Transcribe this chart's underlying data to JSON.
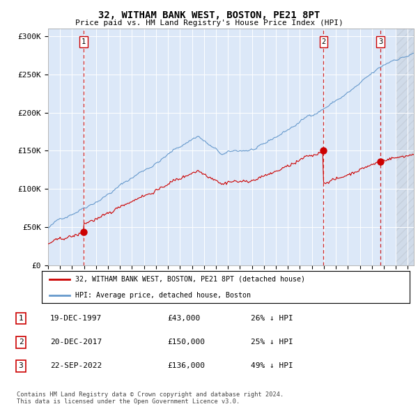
{
  "title": "32, WITHAM BANK WEST, BOSTON, PE21 8PT",
  "subtitle": "Price paid vs. HM Land Registry's House Price Index (HPI)",
  "plot_bg_color": "#dce8f8",
  "sale_year_floats": [
    1997.97,
    2017.97,
    2022.72
  ],
  "sale_prices": [
    43000,
    150000,
    136000
  ],
  "sale_labels": [
    "1",
    "2",
    "3"
  ],
  "legend_entries": [
    "32, WITHAM BANK WEST, BOSTON, PE21 8PT (detached house)",
    "HPI: Average price, detached house, Boston"
  ],
  "table_rows": [
    [
      "1",
      "19-DEC-1997",
      "£43,000",
      "26% ↓ HPI"
    ],
    [
      "2",
      "20-DEC-2017",
      "£150,000",
      "25% ↓ HPI"
    ],
    [
      "3",
      "22-SEP-2022",
      "£136,000",
      "49% ↓ HPI"
    ]
  ],
  "footer": "Contains HM Land Registry data © Crown copyright and database right 2024.\nThis data is licensed under the Open Government Licence v3.0.",
  "hpi_color": "#6699cc",
  "sale_color": "#cc0000",
  "ylim": [
    0,
    310000
  ],
  "yticks": [
    0,
    50000,
    100000,
    150000,
    200000,
    250000,
    300000
  ],
  "ytick_labels": [
    "£0",
    "£50K",
    "£100K",
    "£150K",
    "£200K",
    "£250K",
    "£300K"
  ],
  "xlim_start": 1995.0,
  "xlim_end": 2025.5,
  "hatch_start": 2024.0
}
